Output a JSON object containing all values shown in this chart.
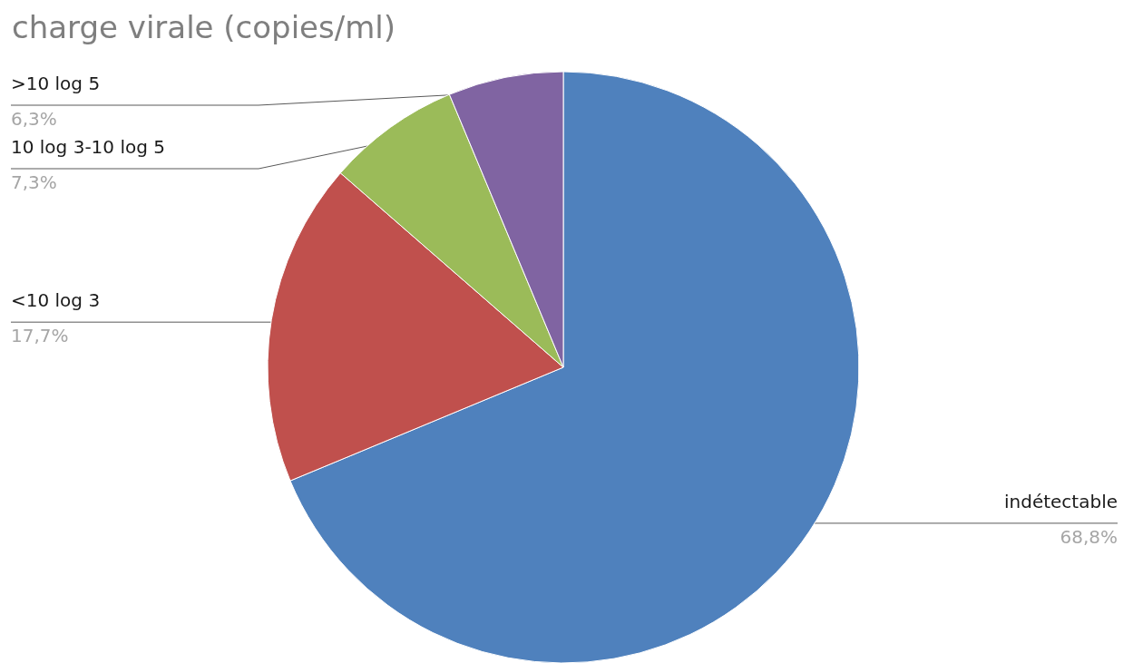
{
  "chart_data": {
    "type": "pie",
    "title": "charge virale (copies/ml)",
    "categories": [
      "indétectable",
      "<10 log 3",
      "10 log 3-10 log 5",
      ">10 log 5"
    ],
    "values": [
      68.8,
      17.7,
      7.3,
      6.3
    ],
    "colors": [
      "#4f81bd",
      "#c0504d",
      "#9bbb59",
      "#8064a2"
    ],
    "value_labels": [
      "68,8%",
      "17,7%",
      "7,3%",
      "6,3%"
    ]
  }
}
